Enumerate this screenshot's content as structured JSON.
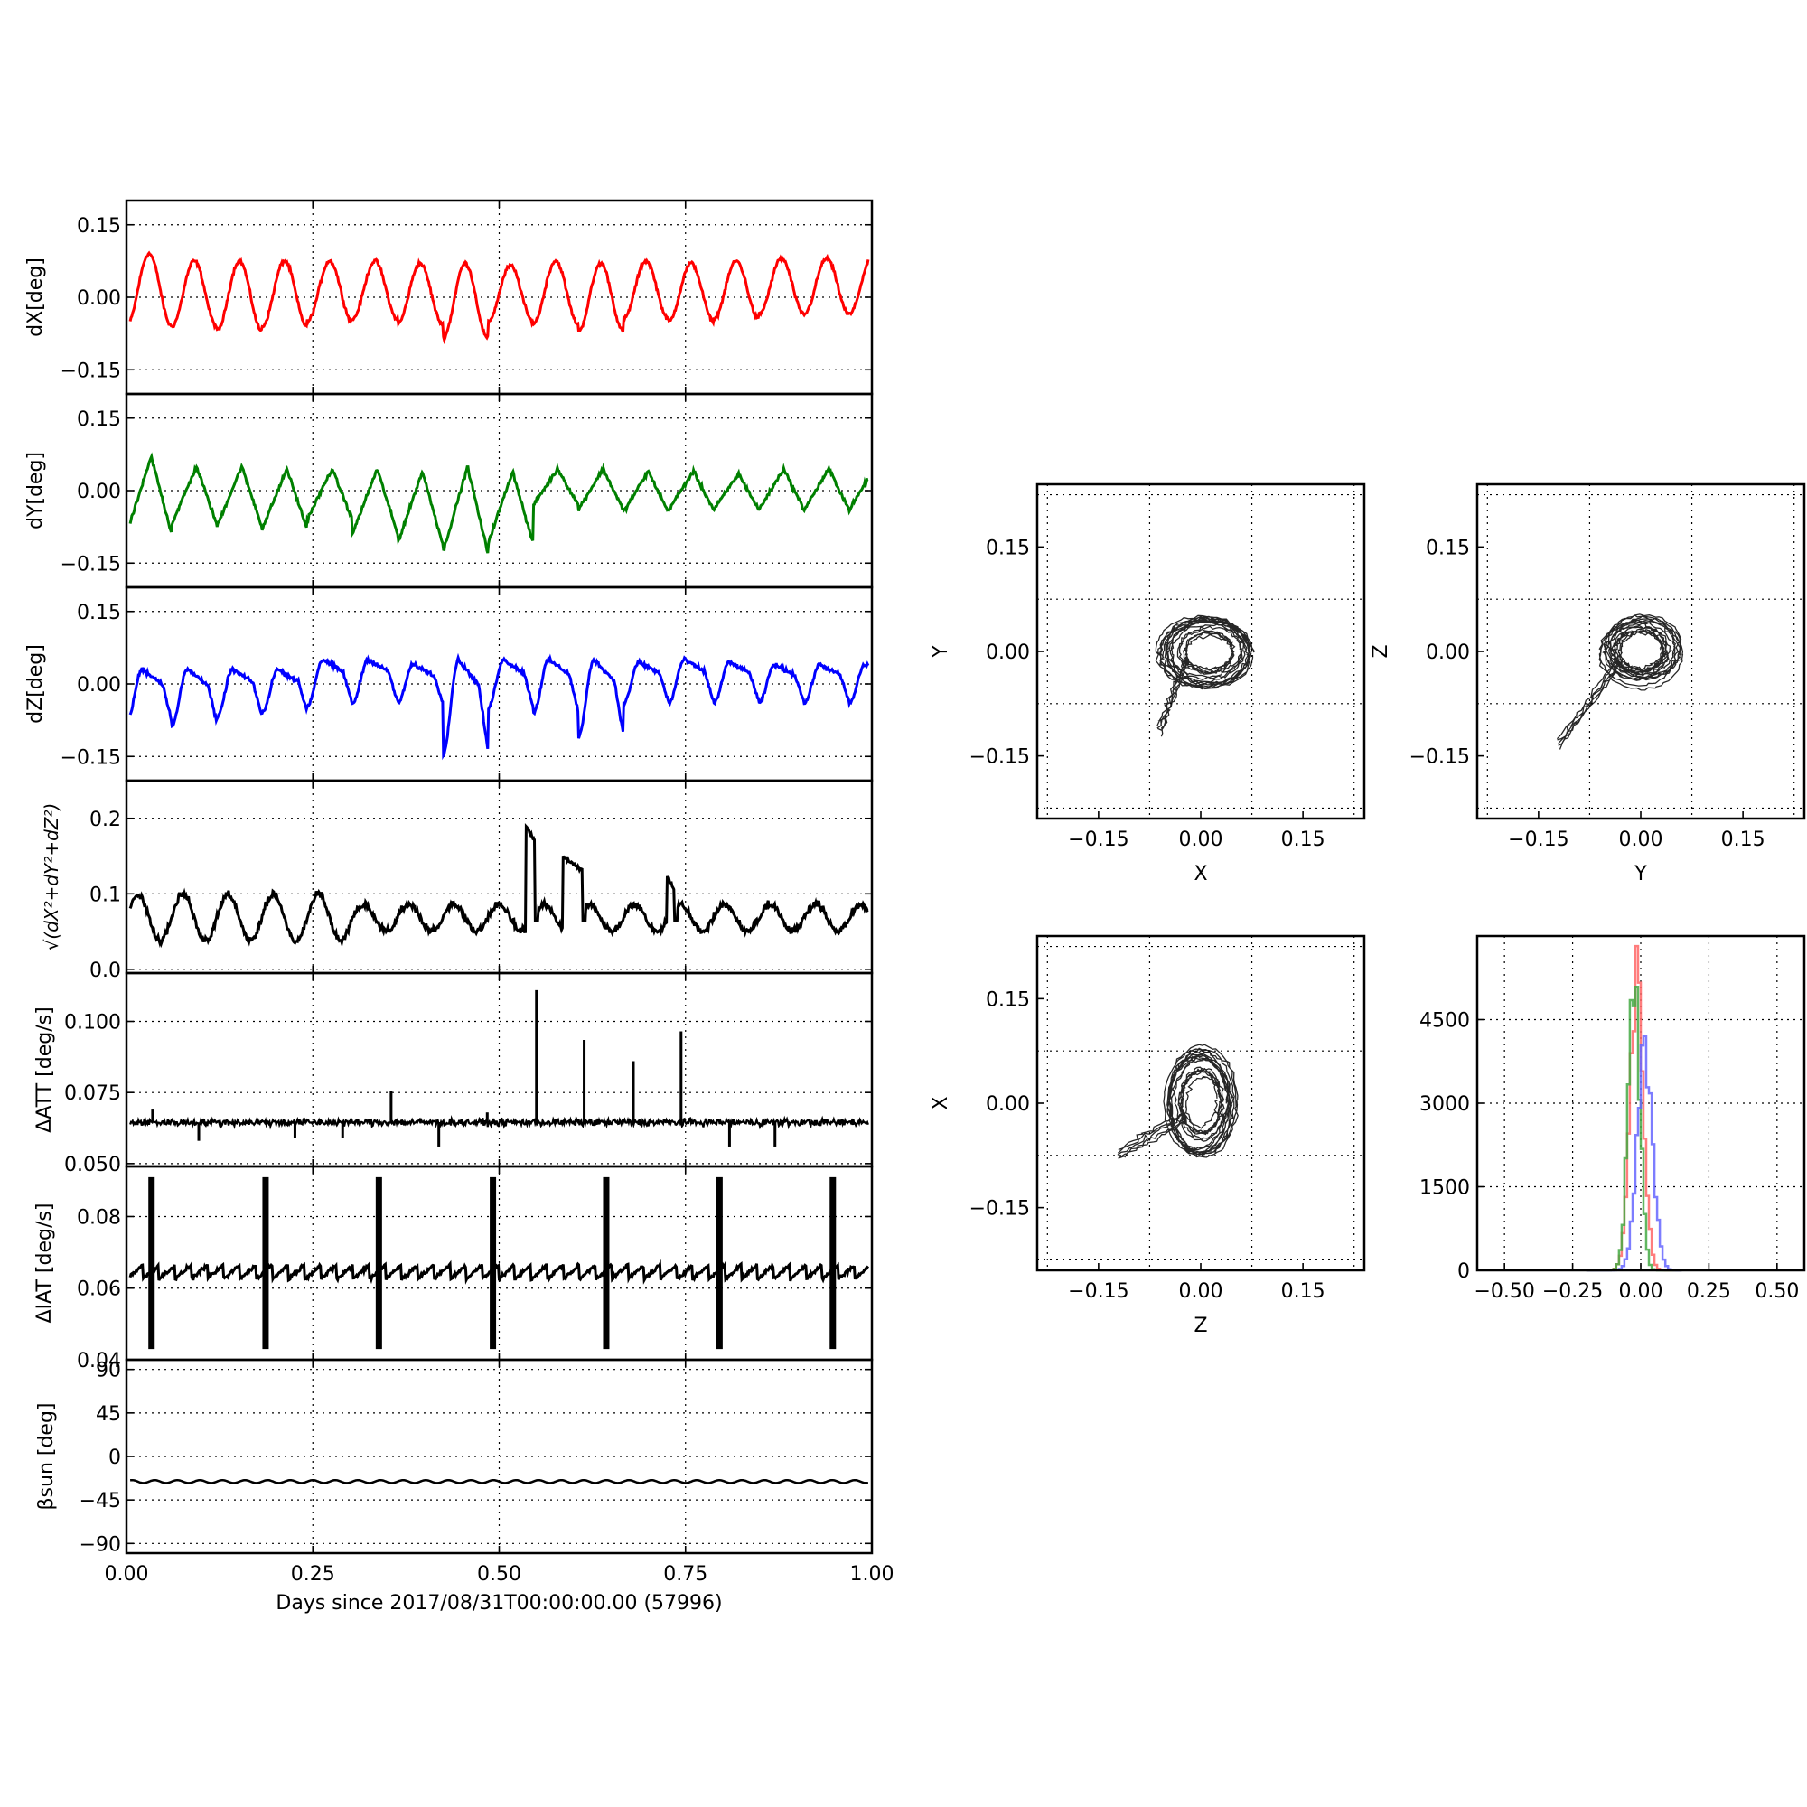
{
  "chart_data": [
    {
      "type": "line",
      "panel": "dX",
      "ylabel": "dX[deg]",
      "xlim": [
        0,
        1.0
      ],
      "ylim": [
        -0.2,
        0.2
      ],
      "yticks": [
        "0.15",
        "0.00",
        "−0.15"
      ],
      "series": [
        {
          "color": "#ff0000",
          "period_days": 0.0606,
          "amplitude": 0.06,
          "offset": 0.005,
          "peaks": [
            0.09,
            0.075,
            0.075,
            0.075,
            0.075,
            0.075,
            0.07,
            0.07,
            0.065,
            0.075,
            0.07,
            0.075,
            0.07,
            0.075,
            0.08
          ],
          "troughs": [
            -0.06,
            -0.06,
            -0.07,
            -0.06,
            -0.05,
            -0.045,
            -0.055,
            -0.085,
            -0.05,
            -0.055,
            -0.07,
            -0.045,
            -0.05,
            -0.045,
            -0.035
          ]
        }
      ]
    },
    {
      "type": "line",
      "panel": "dY",
      "ylabel": "dY[deg]",
      "xlim": [
        0,
        1.0
      ],
      "ylim": [
        -0.2,
        0.2
      ],
      "yticks": [
        "0.15",
        "0.00",
        "−0.15"
      ],
      "series": [
        {
          "color": "#008000",
          "period_days": 0.0606,
          "amplitude": 0.06,
          "offset": -0.02,
          "peaks": [
            0.07,
            0.05,
            0.05,
            0.045,
            0.045,
            0.045,
            0.04,
            0.05,
            0.04,
            0.045,
            0.045,
            0.04,
            0.04,
            0.035,
            0.045
          ],
          "troughs": [
            -0.09,
            -0.07,
            -0.075,
            -0.08,
            -0.06,
            -0.09,
            -0.11,
            -0.13,
            -0.11,
            -0.03,
            -0.04,
            -0.045,
            -0.04,
            -0.04,
            -0.04
          ]
        }
      ]
    },
    {
      "type": "line",
      "panel": "dZ",
      "ylabel": "dZ[deg]",
      "xlim": [
        0,
        1.0
      ],
      "ylim": [
        -0.2,
        0.2
      ],
      "yticks": [
        "0.15",
        "0.00",
        "−0.15"
      ],
      "series": [
        {
          "color": "#0000ff",
          "period_days": 0.0606,
          "amplitude": 0.05,
          "offset": -0.02,
          "peaks": [
            0.03,
            0.03,
            0.03,
            0.03,
            0.05,
            0.05,
            0.04,
            0.05,
            0.05,
            0.05,
            0.05,
            0.045,
            0.05,
            0.045,
            0.04
          ],
          "troughs": [
            -0.08,
            -0.085,
            -0.07,
            -0.06,
            -0.045,
            -0.04,
            -0.04,
            -0.145,
            -0.05,
            -0.06,
            -0.11,
            -0.04,
            -0.04,
            -0.04,
            -0.04
          ]
        }
      ]
    },
    {
      "type": "line",
      "panel": "total",
      "ylabel": "√(dX²+dY²+dZ²)",
      "xlim": [
        0,
        1.0
      ],
      "ylim": [
        -0.005,
        0.25
      ],
      "yticks": [
        "0.2",
        "0.1",
        "0.0"
      ],
      "series": [
        {
          "color": "#000000",
          "base": 0.065,
          "jumps": [
            {
              "x": 0.536,
              "to": 0.19,
              "end": 0.548
            },
            {
              "x": 0.585,
              "to": 0.15,
              "end": 0.612
            },
            {
              "x": 0.725,
              "to": 0.125,
              "end": 0.735
            }
          ]
        }
      ]
    },
    {
      "type": "line",
      "panel": "dATT",
      "ylabel": "ΔATT [deg/s]",
      "xlim": [
        0,
        1.0
      ],
      "ylim": [
        0.049,
        0.117
      ],
      "yticks": [
        "0.100",
        "0.075",
        "0.050"
      ],
      "series": [
        {
          "color": "#000000",
          "base": 0.0645,
          "spikes": [
            {
              "x": 0.035,
              "y": 0.069
            },
            {
              "x": 0.097,
              "y": 0.058
            },
            {
              "x": 0.226,
              "y": 0.059
            },
            {
              "x": 0.29,
              "y": 0.059
            },
            {
              "x": 0.355,
              "y": 0.0755
            },
            {
              "x": 0.419,
              "y": 0.056
            },
            {
              "x": 0.484,
              "y": 0.068
            },
            {
              "x": 0.55,
              "y": 0.111
            },
            {
              "x": 0.614,
              "y": 0.0935
            },
            {
              "x": 0.68,
              "y": 0.086
            },
            {
              "x": 0.744,
              "y": 0.0965
            },
            {
              "x": 0.809,
              "y": 0.056
            },
            {
              "x": 0.87,
              "y": 0.056
            }
          ]
        }
      ]
    },
    {
      "type": "line",
      "panel": "dIAT",
      "ylabel": "ΔIAT [deg/s]",
      "xlim": [
        0,
        1.0
      ],
      "ylim": [
        0.04,
        0.094
      ],
      "yticks": [
        "0.08",
        "0.06",
        "0.04"
      ],
      "series": [
        {
          "color": "#000000",
          "base": 0.064,
          "bursts": [
            0.033,
            0.186,
            0.338,
            0.491,
            0.643,
            0.795,
            0.947
          ],
          "burst_high": 0.091,
          "burst_low": 0.043
        }
      ]
    },
    {
      "type": "line",
      "panel": "beta",
      "ylabel": "βsun [deg]",
      "xlabel": "Days since 2017/08/31T00:00:00.00 (57996)",
      "xlim": [
        0,
        1.0
      ],
      "ylim": [
        -100,
        100
      ],
      "xticks": [
        "0.00",
        "0.25",
        "0.50",
        "0.75",
        "1.00"
      ],
      "yticks": [
        "90",
        "45",
        "0",
        "−45",
        "−90"
      ],
      "series": [
        {
          "color": "#000000",
          "mean": -26,
          "amplitude": 1.5,
          "period_days": 0.0303
        }
      ]
    },
    {
      "type": "scatter",
      "panel": "XY",
      "xlabel": "X",
      "ylabel": "Y",
      "xlim": [
        -0.24,
        0.24
      ],
      "ylim": [
        -0.24,
        0.24
      ],
      "ticks": [
        "−0.15",
        "0.00",
        "0.15"
      ],
      "points": {
        "color": "#000000",
        "center": [
          0.01,
          0.0
        ],
        "rx": 0.06,
        "ry": 0.045,
        "tail_to": [
          -0.06,
          -0.12
        ]
      }
    },
    {
      "type": "scatter",
      "panel": "YZ",
      "xlabel": "Y",
      "ylabel": "Z",
      "xlim": [
        -0.24,
        0.24
      ],
      "ylim": [
        -0.24,
        0.24
      ],
      "ticks": [
        "−0.15",
        "0.00",
        "0.15"
      ],
      "points": {
        "color": "#000000",
        "center": [
          0.0,
          0.0
        ],
        "rx": 0.055,
        "ry": 0.045,
        "tail_to": [
          -0.12,
          -0.14
        ]
      }
    },
    {
      "type": "scatter",
      "panel": "ZX",
      "xlabel": "Z",
      "ylabel": "X",
      "xlim": [
        -0.24,
        0.24
      ],
      "ylim": [
        -0.24,
        0.24
      ],
      "ticks": [
        "−0.15",
        "0.00",
        "0.15"
      ],
      "points": {
        "color": "#000000",
        "center": [
          0.0,
          0.0
        ],
        "rx": 0.045,
        "ry": 0.07,
        "tail_to": [
          -0.12,
          -0.08
        ]
      }
    },
    {
      "type": "histogram",
      "panel": "hist",
      "xlim": [
        -0.6,
        0.6
      ],
      "ylim": [
        0,
        6000
      ],
      "xticks": [
        "−0.50",
        "−0.25",
        "0.00",
        "0.25",
        "0.50"
      ],
      "yticks": [
        "4500",
        "3000",
        "1500",
        "0"
      ],
      "series": [
        {
          "name": "dX",
          "color": "#ff6666",
          "peak_x": -0.02,
          "peak_y": 5800,
          "width": 0.035
        },
        {
          "name": "dY",
          "color": "#44aa44",
          "peak_x": -0.03,
          "peak_y": 5700,
          "width": 0.03
        },
        {
          "name": "dZ",
          "color": "#6666ff",
          "peak_x": 0.01,
          "peak_y": 4200,
          "width": 0.04
        }
      ]
    }
  ]
}
